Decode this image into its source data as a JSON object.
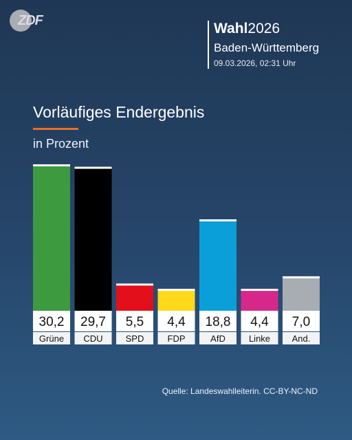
{
  "header": {
    "logo_text": "ZDF",
    "wahl_bold": "Wahl",
    "wahl_year": "2026",
    "state": "Baden-Württemberg",
    "datetime": "09.03.2026, 02:31 Uhr"
  },
  "chart_data": {
    "type": "bar",
    "title": "Vorläufiges Endergebnis",
    "subtitle": "in Prozent",
    "categories": [
      "Grüne",
      "CDU",
      "SPD",
      "FDP",
      "AfD",
      "Linke",
      "And."
    ],
    "values": [
      30.2,
      29.7,
      5.5,
      4.4,
      18.8,
      4.4,
      7.0
    ],
    "value_labels": [
      "30,2",
      "29,7",
      "5,5",
      "4,4",
      "18,8",
      "4,4",
      "7,0"
    ],
    "colors": [
      "#3e9a3e",
      "#000000",
      "#e3101b",
      "#ffd91a",
      "#0a9fd8",
      "#d6288a",
      "#a8adb3"
    ],
    "ylim": [
      0,
      30.2
    ],
    "grid": false,
    "legend": "none"
  },
  "footer": {
    "source": "Quelle: Landeswahlleiterin. CC-BY-NC-ND"
  }
}
